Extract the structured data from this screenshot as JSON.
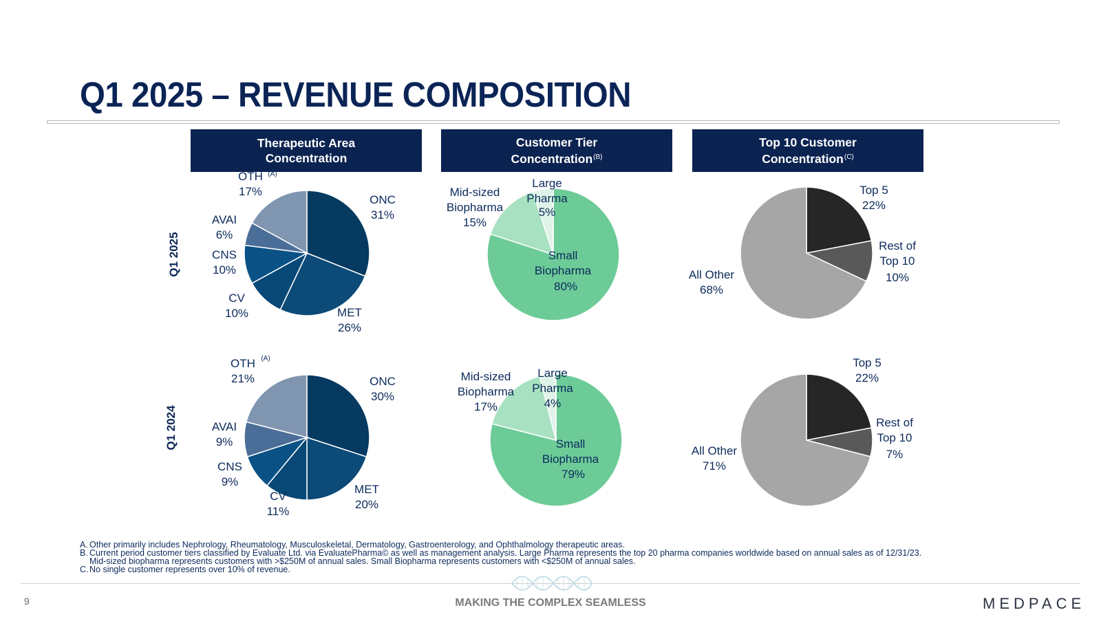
{
  "title": "Q1 2025 – REVENUE COMPOSITION",
  "headers": [
    {
      "line1": "Therapeutic Area",
      "line2": "Concentration",
      "note": ""
    },
    {
      "line1": "Customer Tier",
      "line2": "Concentration",
      "note": "(B)"
    },
    {
      "line1": "Top 10 Customer",
      "line2": "Concentration",
      "note": "(C)"
    }
  ],
  "row_labels": [
    "Q1 2025",
    "Q1 2024"
  ],
  "chart_data": [
    {
      "type": "pie",
      "title": "Therapeutic Area Concentration",
      "period": "Q1 2025",
      "labels": [
        "ONC",
        "MET",
        "CV",
        "CNS",
        "AVAI",
        "OTH"
      ],
      "values": [
        31,
        26,
        10,
        10,
        6,
        17
      ],
      "pct_labels": [
        "31%",
        "26%",
        "10%",
        "10%",
        "6%",
        "17%"
      ],
      "note": "(A)",
      "colors": [
        "#073a61",
        "#0c4a78",
        "#084876",
        "#0a5286",
        "#4b6e98",
        "#8095b0"
      ]
    },
    {
      "type": "pie",
      "title": "Therapeutic Area Concentration",
      "period": "Q1 2024",
      "labels": [
        "ONC",
        "MET",
        "CV",
        "CNS",
        "AVAI",
        "OTH"
      ],
      "values": [
        30,
        20,
        11,
        9,
        9,
        21
      ],
      "pct_labels": [
        "30%",
        "20%",
        "11%",
        "9%",
        "9%",
        "21%"
      ],
      "note": "(A)",
      "colors": [
        "#073a61",
        "#0c4a78",
        "#084876",
        "#0a5286",
        "#4b6e98",
        "#8095b0"
      ]
    },
    {
      "type": "pie",
      "title": "Customer Tier Concentration",
      "period": "Q1 2025",
      "labels": [
        "Small Biopharma",
        "Mid-sized Biopharma",
        "Large Pharma"
      ],
      "values": [
        80,
        15,
        5
      ],
      "pct_labels": [
        "80%",
        "15%",
        "5%"
      ],
      "colors": [
        "#6dcb98",
        "#a8e1c1",
        "#dff3e8"
      ]
    },
    {
      "type": "pie",
      "title": "Customer Tier Concentration",
      "period": "Q1 2024",
      "labels": [
        "Small Biopharma",
        "Mid-sized Biopharma",
        "Large Pharma"
      ],
      "values": [
        79,
        17,
        4
      ],
      "pct_labels": [
        "79%",
        "17%",
        "4%"
      ],
      "colors": [
        "#6dcb98",
        "#a8e1c1",
        "#dff3e8"
      ]
    },
    {
      "type": "pie",
      "title": "Top 10 Customer Concentration",
      "period": "Q1 2025",
      "labels": [
        "Top 5",
        "Rest of Top 10",
        "All Other"
      ],
      "values": [
        22,
        10,
        68
      ],
      "pct_labels": [
        "22%",
        "10%",
        "68%"
      ],
      "colors": [
        "#262626",
        "#595959",
        "#a6a6a6"
      ]
    },
    {
      "type": "pie",
      "title": "Top 10 Customer Concentration",
      "period": "Q1 2024",
      "labels": [
        "Top 5",
        "Rest of Top 10",
        "All Other"
      ],
      "values": [
        22,
        7,
        71
      ],
      "pct_labels": [
        "22%",
        "7%",
        "71%"
      ],
      "colors": [
        "#262626",
        "#595959",
        "#a6a6a6"
      ]
    }
  ],
  "footnotes": [
    {
      "key": "A.",
      "text": "Other primarily includes Nephrology, Rheumatology, Musculoskeletal, Dermatology, Gastroenterology, and Ophthalmology therapeutic areas."
    },
    {
      "key": "B.",
      "text": "Current period customer tiers classified by Evaluate Ltd. via EvaluatePharma© as well as management analysis. Large Pharma represents the top 20 pharma companies worldwide based on annual sales as of 12/31/23. Mid-sized biopharma represents customers with >$250M of annual sales. Small Biopharma represents customers with <$250M of annual sales."
    },
    {
      "key": "C.",
      "text": "No single customer represents over 10% of revenue."
    }
  ],
  "footer": {
    "page_number": "9",
    "tagline": "MAKING THE COMPLEX SEAMLESS",
    "logo_text": "MEDPACE"
  }
}
